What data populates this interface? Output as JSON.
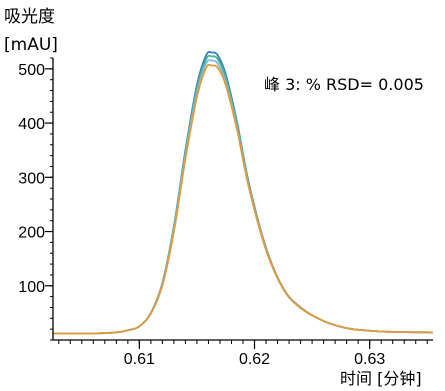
{
  "chart_data": {
    "type": "line",
    "ylabel_lines": [
      "吸光度",
      "[mAU]"
    ],
    "xlabel": "时间 [分钟]",
    "annotation": "峰 3: % RSD= 0.005",
    "xlim": [
      0.6025,
      0.6355
    ],
    "ylim": [
      0,
      520
    ],
    "x_ticks": [
      {
        "value": 0.61,
        "label": "0.61"
      },
      {
        "value": 0.62,
        "label": "0.62"
      },
      {
        "value": 0.63,
        "label": "0.63"
      }
    ],
    "y_ticks": [
      {
        "value": 100,
        "label": "100"
      },
      {
        "value": 200,
        "label": "200"
      },
      {
        "value": 300,
        "label": "300"
      },
      {
        "value": 400,
        "label": "400"
      },
      {
        "value": 500,
        "label": "500"
      }
    ],
    "x_minor_step": 0.001,
    "y_minor_step": 20,
    "series": [
      {
        "color": "#3a7fb4",
        "x": [
          0.6025,
          0.606,
          0.608,
          0.609,
          0.61,
          0.611,
          0.612,
          0.613,
          0.614,
          0.615,
          0.6158,
          0.6163,
          0.6168,
          0.6175,
          0.6185,
          0.6195,
          0.621,
          0.6225,
          0.624,
          0.626,
          0.628,
          0.63,
          0.632,
          0.6355
        ],
        "y": [
          12,
          12,
          14,
          18,
          25,
          50,
          105,
          210,
          350,
          470,
          525,
          530,
          525,
          490,
          400,
          290,
          170,
          95,
          60,
          35,
          22,
          17,
          15,
          14
        ]
      },
      {
        "color": "#3fb59c",
        "x": [
          0.6025,
          0.606,
          0.608,
          0.609,
          0.61,
          0.611,
          0.612,
          0.613,
          0.614,
          0.615,
          0.6158,
          0.6163,
          0.6168,
          0.6175,
          0.6185,
          0.6195,
          0.621,
          0.6225,
          0.624,
          0.626,
          0.628,
          0.63,
          0.632,
          0.6355
        ],
        "y": [
          12,
          12,
          14,
          18,
          25,
          50,
          104,
          208,
          346,
          464,
          518,
          523,
          518,
          484,
          396,
          288,
          169,
          95,
          60,
          35,
          22,
          17,
          15,
          14
        ]
      },
      {
        "color": "#8ab4d8",
        "x": [
          0.6025,
          0.606,
          0.608,
          0.609,
          0.61,
          0.611,
          0.612,
          0.613,
          0.614,
          0.615,
          0.6158,
          0.6163,
          0.6168,
          0.6175,
          0.6185,
          0.6195,
          0.621,
          0.6225,
          0.624,
          0.626,
          0.628,
          0.63,
          0.632,
          0.6355
        ],
        "y": [
          12,
          12,
          14,
          18,
          25,
          49,
          102,
          204,
          340,
          456,
          510,
          515,
          510,
          476,
          390,
          284,
          167,
          94,
          59,
          35,
          22,
          17,
          15,
          14
        ]
      },
      {
        "color": "#e39a3b",
        "x": [
          0.6025,
          0.606,
          0.608,
          0.609,
          0.61,
          0.611,
          0.612,
          0.613,
          0.614,
          0.615,
          0.6158,
          0.6163,
          0.6168,
          0.6175,
          0.6185,
          0.6195,
          0.621,
          0.6225,
          0.624,
          0.626,
          0.628,
          0.63,
          0.632,
          0.6355
        ],
        "y": [
          12,
          12,
          14,
          18,
          25,
          49,
          101,
          200,
          334,
          448,
          502,
          506,
          502,
          470,
          386,
          282,
          166,
          94,
          59,
          35,
          22,
          17,
          15,
          14
        ]
      }
    ]
  }
}
